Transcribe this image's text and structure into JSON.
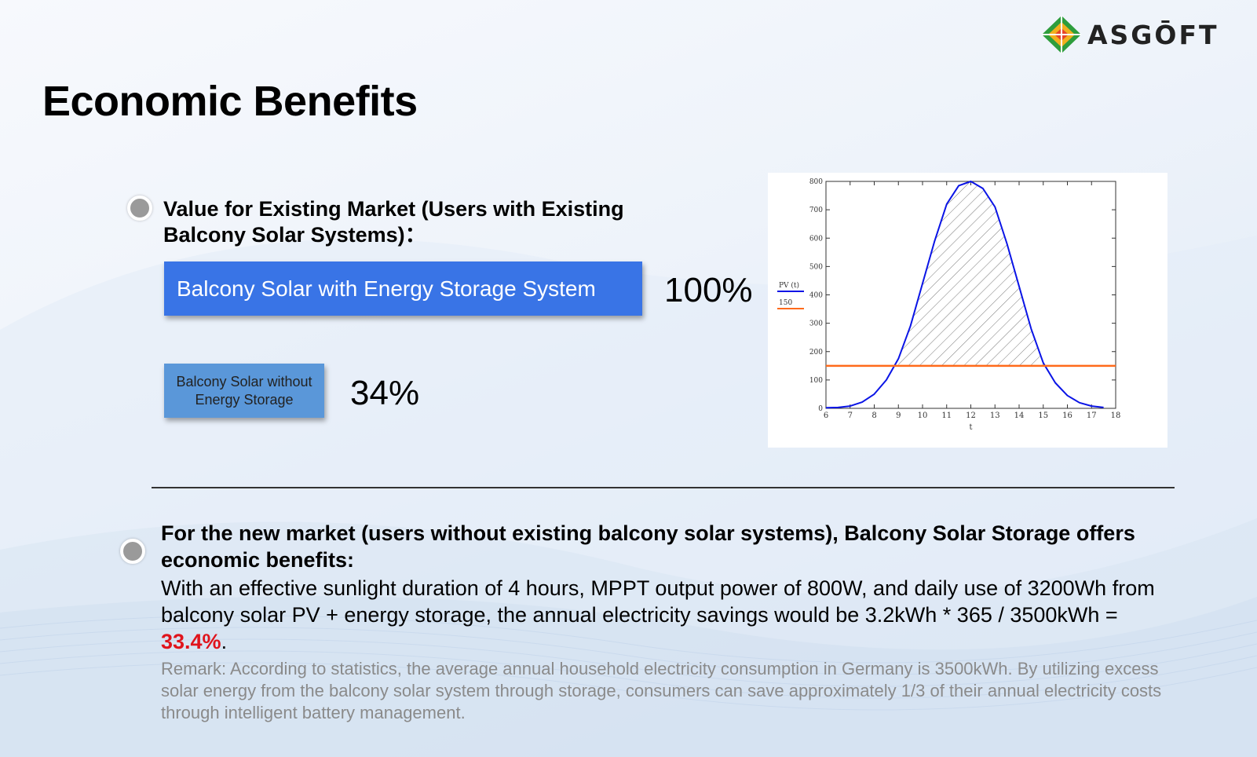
{
  "logo": {
    "text": "ASGŌFT"
  },
  "title": "Economic Benefits",
  "existing_market": {
    "heading": "Value for Existing Market (Users with Existing Balcony Solar Systems)：",
    "bar_with_storage": {
      "label": "Balcony Solar with Energy Storage System",
      "percent": "100%",
      "value": 100,
      "color": "#3974e6"
    },
    "bar_without_storage": {
      "label": "Balcony Solar without Energy Storage",
      "percent": "34%",
      "value": 34,
      "color": "#5a97d9"
    }
  },
  "chart_data": {
    "type": "line",
    "xlabel": "t",
    "ylabel": "",
    "xlim": [
      6,
      18
    ],
    "ylim": [
      0,
      800
    ],
    "x_ticks": [
      6,
      7,
      8,
      9,
      10,
      11,
      12,
      13,
      14,
      15,
      16,
      17,
      18
    ],
    "y_ticks": [
      0,
      100,
      200,
      300,
      400,
      500,
      600,
      700,
      800
    ],
    "legend_position": "left",
    "series": [
      {
        "name": "PV (t)",
        "color": "#0a14e6",
        "x": [
          6,
          6.5,
          7,
          7.5,
          8,
          8.5,
          9,
          9.5,
          10,
          10.5,
          11,
          11.5,
          12,
          12.5,
          13,
          13.5,
          14,
          14.5,
          15,
          15.5,
          16,
          16.5,
          17,
          17.5
        ],
        "values": [
          2,
          3,
          8,
          22,
          50,
          100,
          175,
          290,
          440,
          590,
          720,
          785,
          800,
          775,
          710,
          580,
          430,
          280,
          160,
          90,
          45,
          20,
          8,
          3
        ]
      },
      {
        "name": "150",
        "color": "#ff6a1a",
        "x": [
          6,
          18
        ],
        "values": [
          150,
          150
        ]
      }
    ],
    "shaded_region": {
      "description": "hatched area where PV exceeds 150",
      "x_from": 9,
      "x_to": 15
    }
  },
  "new_market": {
    "heading": "For the new market (users without existing balcony solar systems), Balcony Solar Storage offers economic benefits:",
    "body_prefix": "With an effective sunlight duration of 4 hours, MPPT output power of 800W, and daily use of 3200Wh from balcony solar PV + energy storage, the annual electricity savings would be 3.2kWh * 365 / 3500kWh = ",
    "highlight": "33.4%",
    "body_suffix": ".",
    "remark": "Remark: According to statistics, the average annual household electricity consumption in Germany is 3500kWh. By utilizing excess solar energy from the balcony solar system through storage, consumers can save approximately 1/3 of their annual electricity costs through intelligent battery management."
  }
}
